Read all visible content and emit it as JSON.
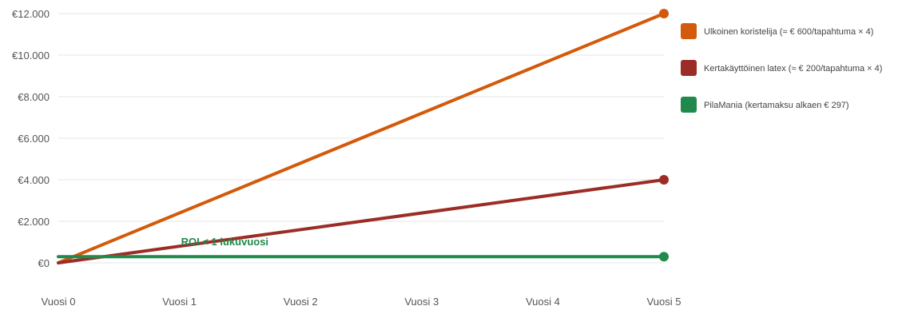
{
  "chart_data": {
    "type": "line",
    "categories": [
      "Vuosi 0",
      "Vuosi 1",
      "Vuosi 2",
      "Vuosi 3",
      "Vuosi 4",
      "Vuosi 5"
    ],
    "y_ticks": [
      {
        "value": 0,
        "label": "€0"
      },
      {
        "value": 2000,
        "label": "€2.000"
      },
      {
        "value": 4000,
        "label": "€4.000"
      },
      {
        "value": 6000,
        "label": "€6.000"
      },
      {
        "value": 8000,
        "label": "€8.000"
      },
      {
        "value": 10000,
        "label": "€10.000"
      },
      {
        "value": 12000,
        "label": "€12.000"
      }
    ],
    "ylim": [
      -800,
      12600
    ],
    "grid": true,
    "legend_position": "right",
    "series": [
      {
        "name": "Ulkoinen koristelija (≈ € 600/tapahtuma × 4)",
        "color": "#d35a0a",
        "x": [
          0,
          5
        ],
        "values": [
          0,
          12000
        ]
      },
      {
        "name": "Kertakäyttöinen latex (≈ € 200/tapahtuma × 4)",
        "color": "#9b2d26",
        "x": [
          0,
          5
        ],
        "values": [
          0,
          4000
        ]
      },
      {
        "name": "PilaMania (kertamaksu alkaen € 297)",
        "color": "#1f8a4c",
        "x": [
          0,
          5
        ],
        "values": [
          297,
          297
        ]
      }
    ],
    "annotations": [
      {
        "text": "ROI < 1 lukuvuosi",
        "x": 1.0,
        "y": 1000,
        "color": "#1f8a4c"
      }
    ]
  }
}
